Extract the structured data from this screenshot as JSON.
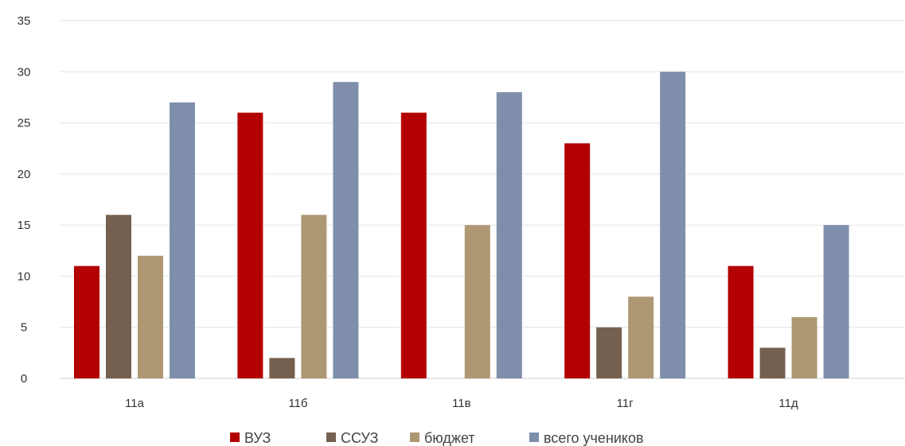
{
  "chart_data": {
    "type": "bar",
    "categories": [
      "11а",
      "11б",
      "11в",
      "11г",
      "11д"
    ],
    "series": [
      {
        "name": "ВУЗ",
        "color": "#b30000",
        "values": [
          11,
          26,
          26,
          23,
          11
        ]
      },
      {
        "name": "ССУЗ",
        "color": "#75604f",
        "values": [
          16,
          2,
          0,
          5,
          3
        ]
      },
      {
        "name": "бюджет",
        "color": "#ae9873",
        "values": [
          12,
          16,
          15,
          8,
          6
        ]
      },
      {
        "name": "всего учеников",
        "color": "#7f8eab",
        "values": [
          27,
          29,
          28,
          30,
          15
        ]
      }
    ],
    "ylim": [
      0,
      35
    ],
    "yticks": [
      0,
      5,
      10,
      15,
      20,
      25,
      30,
      35
    ],
    "grid": true,
    "legend_position": "bottom"
  }
}
